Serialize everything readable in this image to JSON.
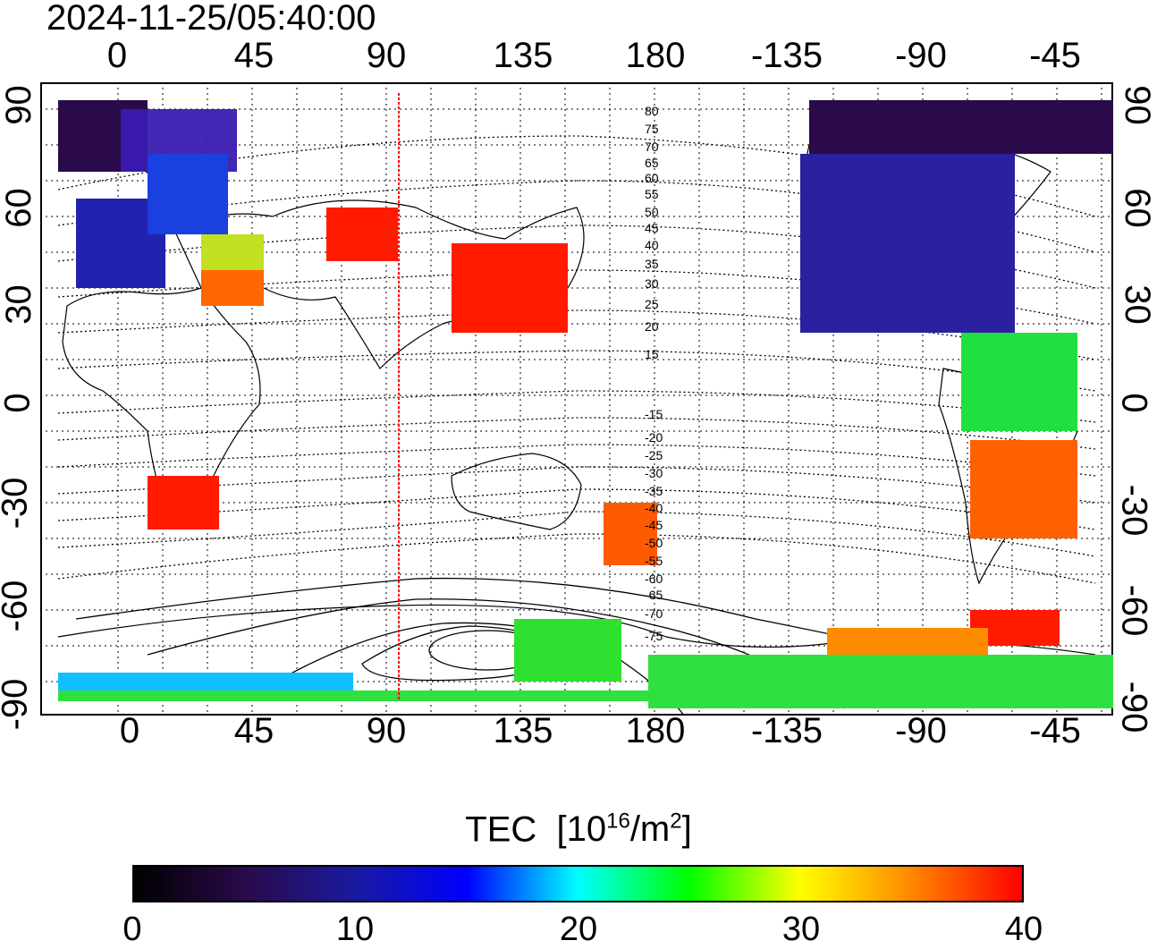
{
  "timestamp": "2024-11-25/05:40:00",
  "lon_labels": [
    "0",
    "45",
    "90",
    "135",
    "180",
    "-135",
    "-90",
    "-45"
  ],
  "lat_labels": [
    "90",
    "60",
    "30",
    "0",
    "-30",
    "-60",
    "-90"
  ],
  "contour_labels": [
    "80",
    "75",
    "70",
    "65",
    "60",
    "55",
    "50",
    "45",
    "40",
    "35",
    "30",
    "25",
    "20",
    "15",
    "-15",
    "-20",
    "-25",
    "-30",
    "-35",
    "-40",
    "-45",
    "-50",
    "-55",
    "-60",
    "-65",
    "-70",
    "-75"
  ],
  "colorbar": {
    "title": "TEC",
    "unit_base": "[10",
    "unit_exp": "16",
    "unit_mid": "/m",
    "unit_exp2": "2",
    "unit_close": "]",
    "ticks": [
      "0",
      "10",
      "20",
      "30",
      "40"
    ],
    "colors": [
      "#000000",
      "#2a0a4a",
      "#1a1aa0",
      "#0000ff",
      "#00ffff",
      "#00ff00",
      "#ffff00",
      "#ff8800",
      "#ff0000"
    ]
  },
  "sun_longitude_marker": {
    "color": "#ff0000"
  }
}
